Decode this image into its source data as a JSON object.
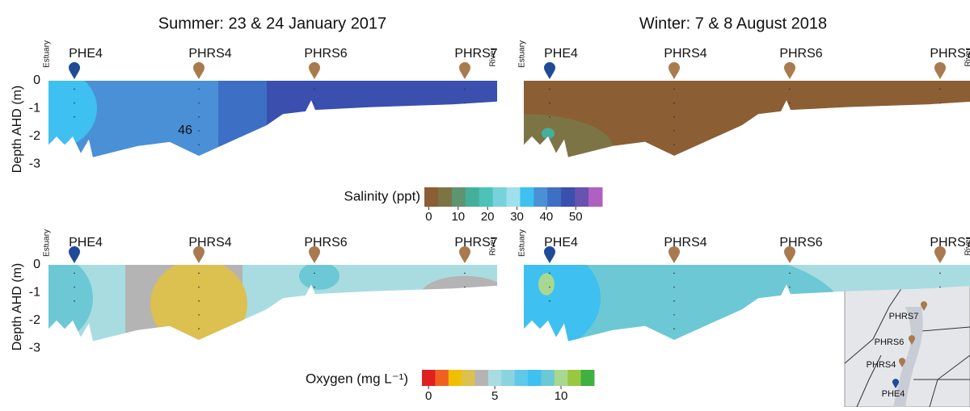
{
  "columns": [
    "Summer: 23 & 24 January 2017",
    "Winter: 7 & 8 August 2018"
  ],
  "end_labels": [
    "Estuary",
    "River"
  ],
  "stations": [
    {
      "name": "PHE4",
      "color": "#1f4a96"
    },
    {
      "name": "PHRS4",
      "color": "#a87a4e"
    },
    {
      "name": "PHRS6",
      "color": "#a87a4e"
    },
    {
      "name": "PHRS7",
      "color": "#a87a4e"
    }
  ],
  "depth_axis": {
    "label": "Depth AHD (m)",
    "ylim": [
      0.35,
      -3.2
    ],
    "yticks": [
      0,
      -1,
      -2,
      -3
    ]
  },
  "annotation": 46,
  "salinity_scale": {
    "label": "Salinity (ppt)",
    "clim": [
      -1.5,
      59
    ],
    "ticks": [
      0,
      10,
      20,
      30,
      40,
      50
    ],
    "colors": [
      "#8b5e34",
      "#7d7445",
      "#5f9470",
      "#45b09a",
      "#4cc2b8",
      "#78d2dc",
      "#9ee0ec",
      "#3ec0f0",
      "#4a90d6",
      "#3d6fc4",
      "#3a4fae",
      "#6a52b0",
      "#b060c0"
    ]
  },
  "oxygen_scale": {
    "label": "Oxygen (mg L⁻¹)",
    "clim": [
      -0.5,
      12.5
    ],
    "ticks": [
      0,
      5,
      10
    ],
    "colors": [
      "#e02020",
      "#f06020",
      "#f0c000",
      "#dcc050",
      "#b4b4b4",
      "#a8dce0",
      "#8ad4e0",
      "#60c8e8",
      "#3ec0f0",
      "#6cc8d4",
      "#a8d890",
      "#98c840",
      "#40b040"
    ]
  },
  "map": {
    "labels": [
      "PHRS7",
      "PHRS6",
      "PHRS4",
      "PHE4"
    ]
  }
}
